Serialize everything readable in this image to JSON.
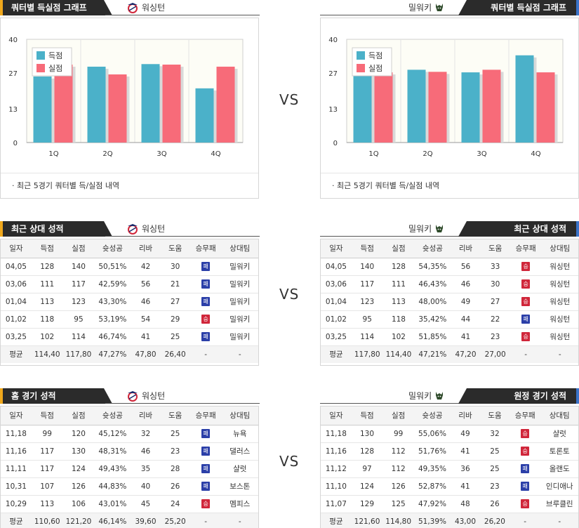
{
  "colors": {
    "scored": "#4bb1c9",
    "allowed": "#f76b79",
    "loss_badge": "#2b3fa8",
    "win_badge": "#d0263a",
    "header_dark": "#2b2b2b",
    "accent_left": "#f0a81c",
    "accent_right": "#3a73c9"
  },
  "vs_label": "VS",
  "sections": {
    "quarter": {
      "left_title": "쿼터별 득실점 그래프",
      "right_title": "쿼터별 득실점 그래프",
      "note": "최근 5경기 쿼터별 득/실점 내역"
    },
    "recent": {
      "left_title": "최근 상대 성적",
      "right_title": "최근 상대 성적"
    },
    "homeaway": {
      "left_title": "홈 경기 성적",
      "right_title": "원정 경기 성적"
    }
  },
  "teams": {
    "home": {
      "name": "워싱턴",
      "logo_icon": "wizards-logo-icon"
    },
    "away": {
      "name": "밀워키",
      "logo_icon": "bucks-logo-icon"
    }
  },
  "chart_data": [
    {
      "type": "bar",
      "categories": [
        "1Q",
        "2Q",
        "3Q",
        "4Q"
      ],
      "series": [
        {
          "name": "득점",
          "values": [
            25.6,
            29.4,
            30.4,
            21.0
          ]
        },
        {
          "name": "실점",
          "values": [
            30.2,
            26.4,
            30.2,
            29.4
          ]
        }
      ],
      "yticks": [
        "40",
        "27",
        "13",
        "0"
      ],
      "ylim": [
        0,
        40
      ],
      "legend": "top-left"
    },
    {
      "type": "bar",
      "categories": [
        "1Q",
        "2Q",
        "3Q",
        "4Q"
      ],
      "series": [
        {
          "name": "득점",
          "values": [
            31.2,
            28.2,
            27.2,
            33.8
          ]
        },
        {
          "name": "실점",
          "values": [
            27.2,
            27.4,
            28.2,
            27.2
          ]
        }
      ],
      "yticks": [
        "40",
        "27",
        "13",
        "0"
      ],
      "ylim": [
        0,
        40
      ],
      "legend": "top-left"
    }
  ],
  "table_headers": [
    "일자",
    "득점",
    "실점",
    "슛성공",
    "리바",
    "도움",
    "승무패",
    "상대팀"
  ],
  "badge_labels": {
    "W": "승",
    "L": "패"
  },
  "tables": {
    "recent_left": {
      "rows": [
        [
          "04,05",
          "128",
          "140",
          "50,51%",
          "42",
          "30",
          "L",
          "밀워키"
        ],
        [
          "03,06",
          "111",
          "117",
          "42,59%",
          "56",
          "21",
          "L",
          "밀워키"
        ],
        [
          "01,04",
          "113",
          "123",
          "43,30%",
          "46",
          "27",
          "L",
          "밀워키"
        ],
        [
          "01,02",
          "118",
          "95",
          "53,19%",
          "54",
          "29",
          "W",
          "밀워키"
        ],
        [
          "03,25",
          "102",
          "114",
          "46,74%",
          "41",
          "25",
          "L",
          "밀워키"
        ]
      ],
      "avg": [
        "평균",
        "114,40",
        "117,80",
        "47,27%",
        "47,80",
        "26,40",
        "-",
        "-"
      ]
    },
    "recent_right": {
      "rows": [
        [
          "04,05",
          "140",
          "128",
          "54,35%",
          "56",
          "33",
          "W",
          "워싱턴"
        ],
        [
          "03,06",
          "117",
          "111",
          "46,43%",
          "46",
          "30",
          "W",
          "워싱턴"
        ],
        [
          "01,04",
          "123",
          "113",
          "48,00%",
          "49",
          "27",
          "W",
          "워싱턴"
        ],
        [
          "01,02",
          "95",
          "118",
          "35,42%",
          "44",
          "22",
          "L",
          "워싱턴"
        ],
        [
          "03,25",
          "114",
          "102",
          "51,85%",
          "41",
          "23",
          "W",
          "워싱턴"
        ]
      ],
      "avg": [
        "평균",
        "117,80",
        "114,40",
        "47,21%",
        "47,20",
        "27,00",
        "-",
        "-"
      ]
    },
    "home_left": {
      "rows": [
        [
          "11,18",
          "99",
          "120",
          "45,12%",
          "32",
          "25",
          "L",
          "뉴욕"
        ],
        [
          "11,16",
          "117",
          "130",
          "48,31%",
          "46",
          "23",
          "L",
          "댈러스"
        ],
        [
          "11,11",
          "117",
          "124",
          "49,43%",
          "35",
          "28",
          "L",
          "샬럿"
        ],
        [
          "10,31",
          "107",
          "126",
          "44,83%",
          "40",
          "26",
          "L",
          "보스톤"
        ],
        [
          "10,29",
          "113",
          "106",
          "43,01%",
          "45",
          "24",
          "W",
          "멤피스"
        ]
      ],
      "avg": [
        "평균",
        "110,60",
        "121,20",
        "46,14%",
        "39,60",
        "25,20",
        "-",
        "-"
      ]
    },
    "away_right": {
      "rows": [
        [
          "11,18",
          "130",
          "99",
          "55,06%",
          "49",
          "32",
          "W",
          "샬럿"
        ],
        [
          "11,16",
          "128",
          "112",
          "51,76%",
          "41",
          "25",
          "W",
          "토론토"
        ],
        [
          "11,12",
          "97",
          "112",
          "49,35%",
          "36",
          "25",
          "L",
          "올랜도"
        ],
        [
          "11,10",
          "124",
          "126",
          "52,87%",
          "41",
          "23",
          "L",
          "인디애나"
        ],
        [
          "11,07",
          "129",
          "125",
          "47,92%",
          "48",
          "26",
          "W",
          "브루클린"
        ]
      ],
      "avg": [
        "평균",
        "121,60",
        "114,80",
        "51,39%",
        "43,00",
        "26,20",
        "-",
        "-"
      ]
    }
  }
}
